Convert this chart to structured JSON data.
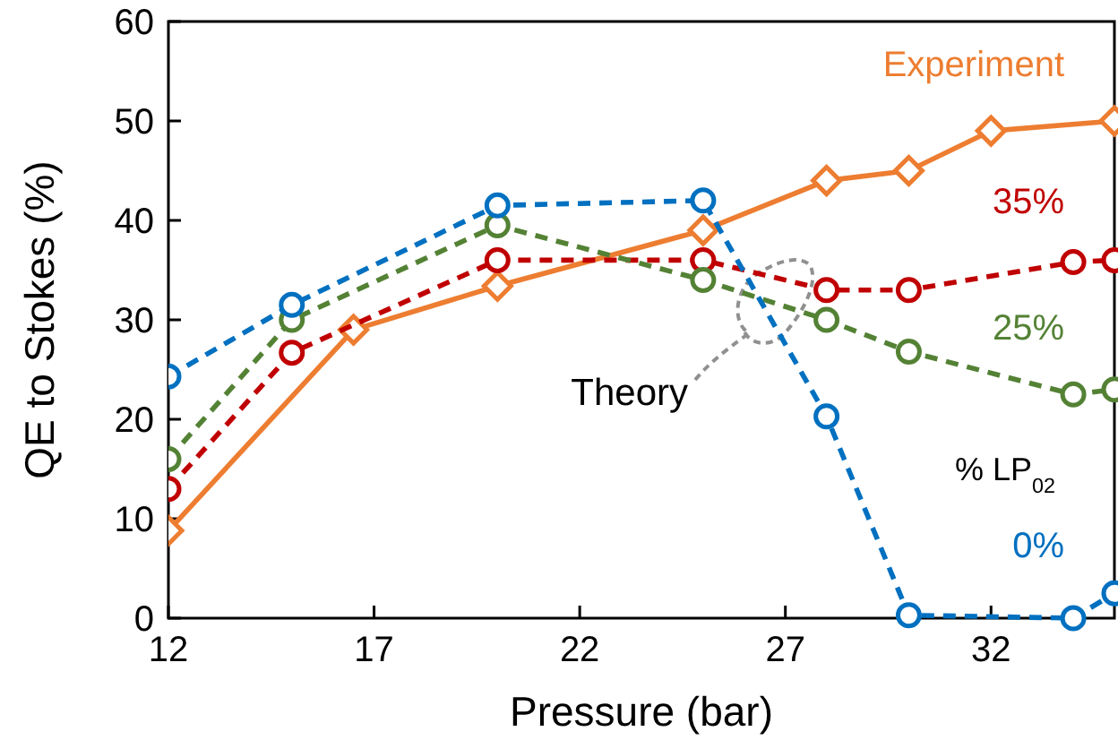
{
  "chart_data": {
    "type": "line",
    "xlabel": "Pressure (bar)",
    "ylabel": "QE to Stokes (%)",
    "xlim": [
      12,
      35
    ],
    "xticks": [
      12,
      17,
      22,
      27,
      32
    ],
    "ylim": [
      0,
      60
    ],
    "yticks": [
      0,
      10,
      20,
      30,
      40,
      50,
      60
    ],
    "grid": false,
    "series": [
      {
        "name": "Experiment",
        "color": "#ed7d31",
        "marker": "diamond",
        "line_style": "solid",
        "x": [
          12,
          16.5,
          20,
          25,
          28,
          30,
          32,
          35
        ],
        "values": [
          8.8,
          29,
          33.4,
          39,
          44,
          45,
          49,
          50
        ]
      },
      {
        "name": "35%",
        "color": "#c00000",
        "marker": "circle",
        "line_style": "dashed",
        "x": [
          12,
          15,
          20,
          25,
          28,
          30,
          34,
          35
        ],
        "values": [
          13,
          26.7,
          36,
          36,
          33,
          33,
          35.8,
          36
        ]
      },
      {
        "name": "25%",
        "color": "#548235",
        "marker": "circle",
        "line_style": "dashed",
        "x": [
          12,
          15,
          20,
          25,
          28,
          30,
          34,
          35
        ],
        "values": [
          16,
          30,
          39.5,
          34,
          30,
          26.8,
          22.5,
          23
        ]
      },
      {
        "name": "0%",
        "color": "#0070c0",
        "marker": "circle",
        "line_style": "dashed",
        "x": [
          12,
          15,
          20,
          25,
          28,
          30,
          34,
          35
        ],
        "values": [
          24.3,
          31.5,
          41.5,
          42,
          20.3,
          0.3,
          0,
          2.5
        ]
      }
    ],
    "annotations": [
      "Theory",
      "% LP$_{02}$"
    ]
  }
}
